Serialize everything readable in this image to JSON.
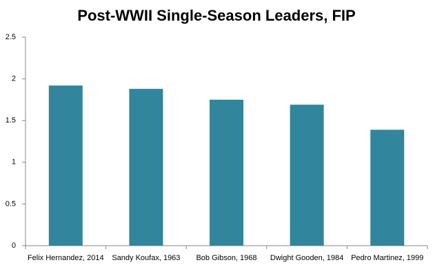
{
  "chart_data": {
    "type": "bar",
    "title": "Post-WWII Single-Season Leaders, FIP",
    "categories": [
      "Felix Hernandez, 2014",
      "Sandy Koufax, 1963",
      "Bob Gibson, 1968",
      "Dwight Gooden, 1984",
      "Pedro Martinez, 1999"
    ],
    "values": [
      1.92,
      1.88,
      1.75,
      1.69,
      1.39
    ],
    "color": "#31859c",
    "ylim": [
      0,
      2.5
    ],
    "yticks": [
      0,
      0.5,
      1,
      1.5,
      2,
      2.5
    ],
    "grid": false
  }
}
